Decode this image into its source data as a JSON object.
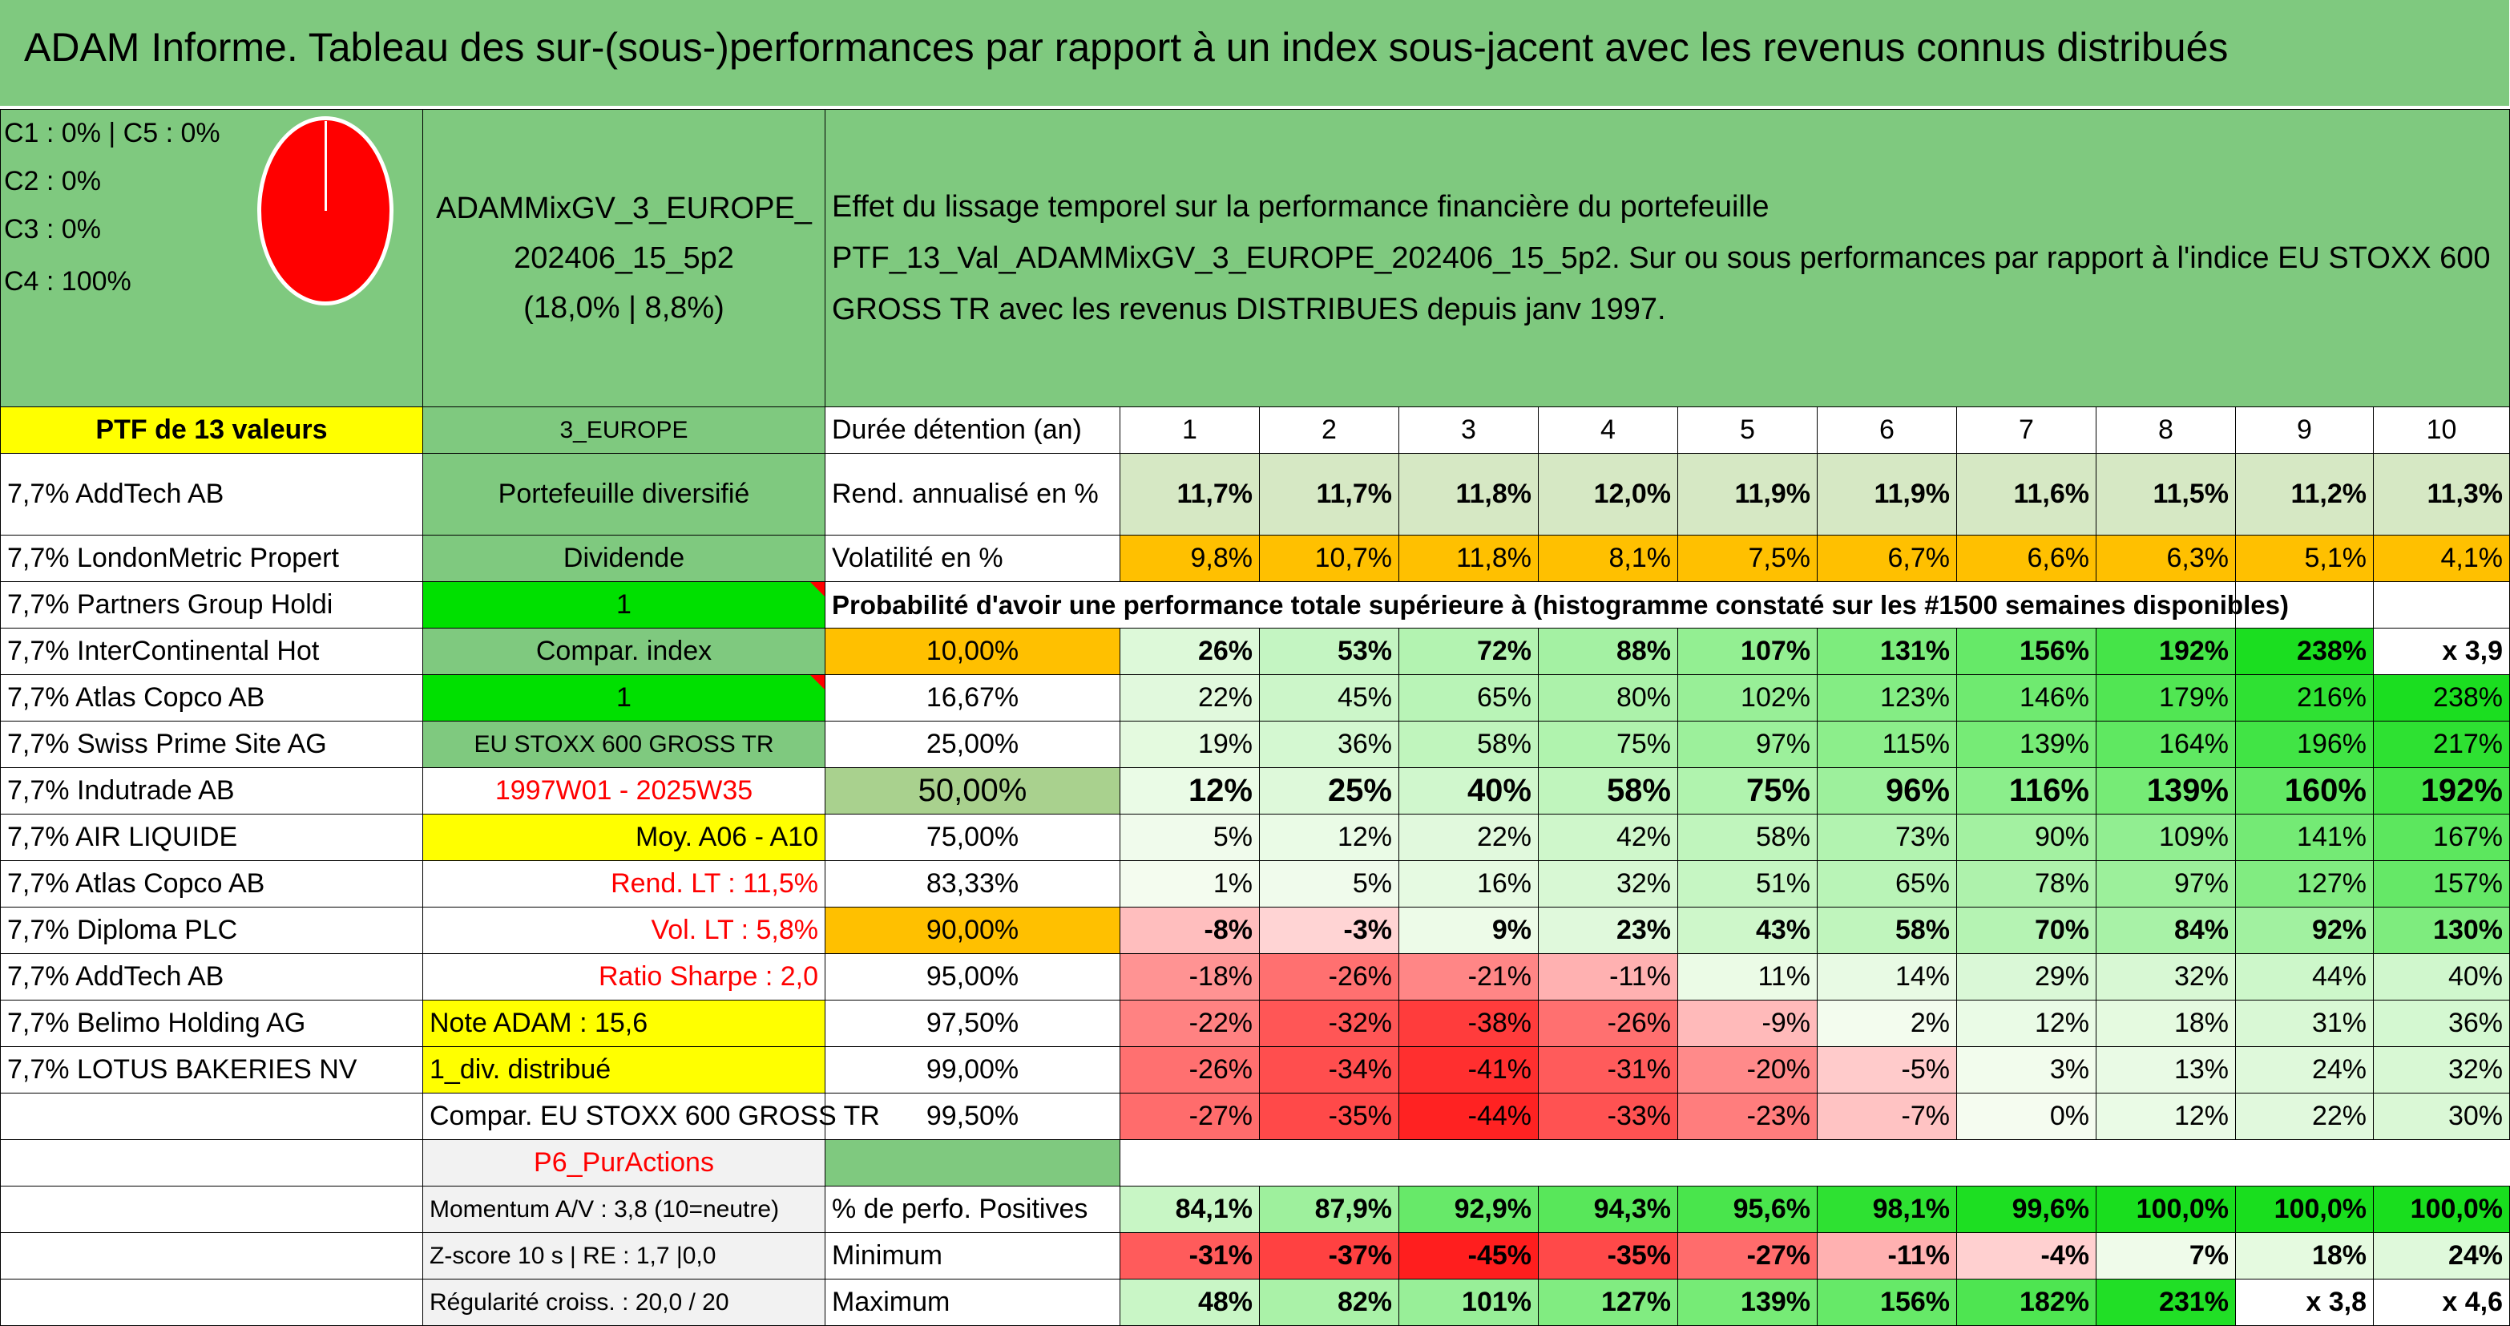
{
  "title": "ADAM Informe. Tableau des sur-(sous-)performances par rapport à un index sous-jacent avec les revenus connus distribués",
  "classes": [
    "C1 : 0% | C5 : 0%",
    "C2 : 0%",
    "C3 : 0%",
    "C4 : 100%"
  ],
  "portfolio_name": "ADAMMixGV_3_EUROPE_202406_15_5p2",
  "portfolio_stats": "(18,0% | 8,8%)",
  "description": "Effet du lissage temporel sur la performance financière du portefeuille PTF_13_Val_ADAMMixGV_3_EUROPE_202406_15_5p2. Sur ou sous performances par rapport à l'indice EU STOXX 600 GROSS TR avec les revenus DISTRIBUES depuis janv 1997.",
  "ptf_label": "PTF de 13 valeurs",
  "holdings": [
    "7,7% AddTech AB",
    "7,7% LondonMetric Propert",
    "7,7% Partners Group Holdi",
    "7,7% InterContinental Hot",
    "7,7% Atlas Copco AB",
    "7,7% Swiss Prime Site AG",
    "7,7% Indutrade AB",
    "7,7% AIR LIQUIDE",
    "7,7% Atlas Copco AB",
    "7,7% Diploma PLC",
    "7,7% AddTech AB",
    "7,7% Belimo Holding AG",
    "7,7% LOTUS BAKERIES NV"
  ],
  "info_col": [
    "3_EUROPE",
    "Portefeuille diversifié",
    "Dividende",
    "1",
    "Compar. index",
    "1",
    "EU STOXX 600 GROSS TR",
    "1997W01 - 2025W35",
    "Moy. A06 - A10",
    "Rend. LT : 11,5%",
    "Vol. LT : 5,8%",
    "Ratio Sharpe : 2,0",
    "Note ADAM : 15,6",
    "1_div. distribué",
    "Compar. EU STOXX 600 GROSS TR",
    "P6_PurActions",
    "Momentum A/V : 3,8 (10=neutre)",
    "Z-score 10 s | RE : 1,7 |0,0",
    "Régularité croiss. : 20,0 / 20"
  ],
  "stats": {
    "header_label": "Durée détention (an)",
    "years": [
      "1",
      "2",
      "3",
      "4",
      "5",
      "6",
      "7",
      "8",
      "9",
      "10"
    ],
    "return_label": "Rend. annualisé en %",
    "returns": [
      "11,7%",
      "11,7%",
      "11,8%",
      "12,0%",
      "11,9%",
      "11,9%",
      "11,6%",
      "11,5%",
      "11,2%",
      "11,3%"
    ],
    "vol_label": "Volatilité en %",
    "vols": [
      "9,8%",
      "10,7%",
      "11,8%",
      "8,1%",
      "7,5%",
      "6,7%",
      "6,6%",
      "6,3%",
      "5,1%",
      "4,1%"
    ],
    "prob_label": "Probabilité d'avoir une performance totale supérieure à (histogramme constaté sur les #1500 semaines disponibles)"
  },
  "prob_rows": [
    {
      "p": "10,00%",
      "v": [
        "26%",
        "53%",
        "72%",
        "88%",
        "107%",
        "131%",
        "156%",
        "192%",
        "238%",
        "x 3,9"
      ]
    },
    {
      "p": "16,67%",
      "v": [
        "22%",
        "45%",
        "65%",
        "80%",
        "102%",
        "123%",
        "146%",
        "179%",
        "216%",
        "238%"
      ]
    },
    {
      "p": "25,00%",
      "v": [
        "19%",
        "36%",
        "58%",
        "75%",
        "97%",
        "115%",
        "139%",
        "164%",
        "196%",
        "217%"
      ]
    },
    {
      "p": "50,00%",
      "v": [
        "12%",
        "25%",
        "40%",
        "58%",
        "75%",
        "96%",
        "116%",
        "139%",
        "160%",
        "192%"
      ]
    },
    {
      "p": "75,00%",
      "v": [
        "5%",
        "12%",
        "22%",
        "42%",
        "58%",
        "73%",
        "90%",
        "109%",
        "141%",
        "167%"
      ]
    },
    {
      "p": "83,33%",
      "v": [
        "1%",
        "5%",
        "16%",
        "32%",
        "51%",
        "65%",
        "78%",
        "97%",
        "127%",
        "157%"
      ]
    },
    {
      "p": "90,00%",
      "v": [
        "-8%",
        "-3%",
        "9%",
        "23%",
        "43%",
        "58%",
        "70%",
        "84%",
        "92%",
        "130%"
      ]
    },
    {
      "p": "95,00%",
      "v": [
        "-18%",
        "-26%",
        "-21%",
        "-11%",
        "11%",
        "14%",
        "29%",
        "32%",
        "44%",
        "40%"
      ]
    },
    {
      "p": "97,50%",
      "v": [
        "-22%",
        "-32%",
        "-38%",
        "-26%",
        "-9%",
        "2%",
        "12%",
        "18%",
        "31%",
        "36%"
      ]
    },
    {
      "p": "99,00%",
      "v": [
        "-26%",
        "-34%",
        "-41%",
        "-31%",
        "-20%",
        "-5%",
        "3%",
        "13%",
        "24%",
        "32%"
      ]
    },
    {
      "p": "99,50%",
      "v": [
        "-27%",
        "-35%",
        "-44%",
        "-33%",
        "-23%",
        "-7%",
        "0%",
        "12%",
        "22%",
        "30%"
      ]
    }
  ],
  "bottom_rows": [
    {
      "label": "% de perfo. Positives",
      "v": [
        "84,1%",
        "87,9%",
        "92,9%",
        "94,3%",
        "95,6%",
        "98,1%",
        "99,6%",
        "100,0%",
        "100,0%",
        "100,0%"
      ]
    },
    {
      "label": "Minimum",
      "v": [
        "-31%",
        "-37%",
        "-45%",
        "-35%",
        "-27%",
        "-11%",
        "-4%",
        "7%",
        "18%",
        "24%"
      ]
    },
    {
      "label": "Maximum",
      "v": [
        "48%",
        "82%",
        "101%",
        "127%",
        "139%",
        "156%",
        "182%",
        "231%",
        "x 3,8",
        "x 4,6"
      ]
    }
  ],
  "colors": {
    "header_green": "#7fc97f",
    "yellow": "#ffff00",
    "bright_green": "#00e000",
    "orange": "#ffc000",
    "red_text": "#ff0000",
    "pie_red": "#ff0000"
  }
}
